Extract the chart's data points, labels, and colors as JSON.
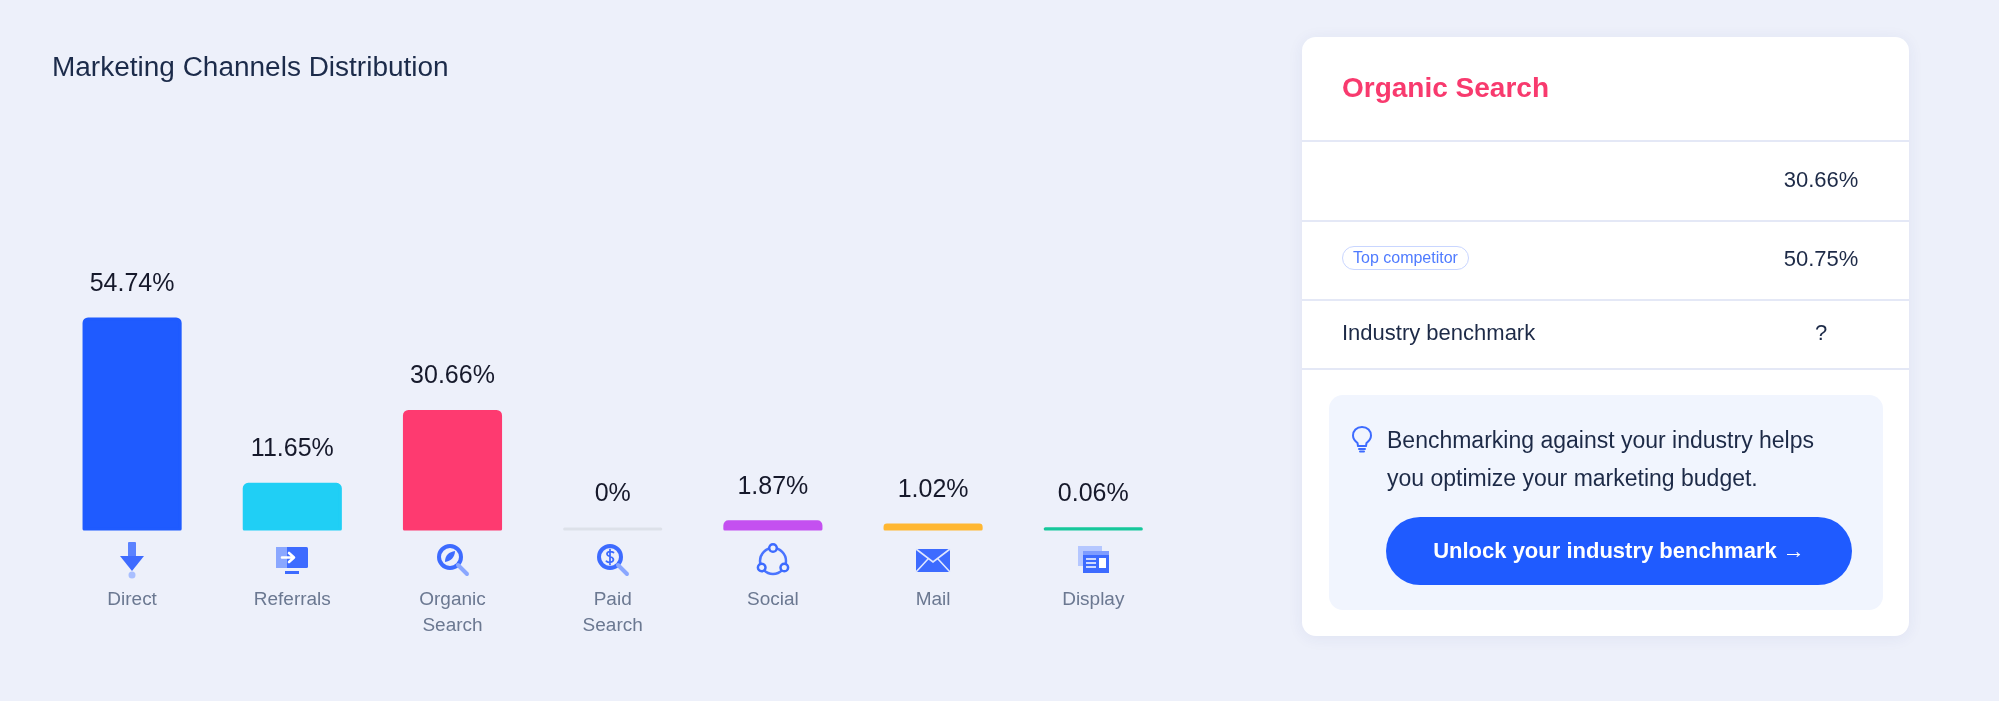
{
  "chart_data": [
    {
      "type": "bar",
      "title": "Marketing Channels Distribution",
      "categories": [
        "Direct",
        "Referrals",
        "Organic Search",
        "Paid Search",
        "Social",
        "Mail",
        "Display"
      ],
      "values": [
        54.74,
        11.65,
        30.66,
        0,
        1.87,
        1.02,
        0.06
      ],
      "colors": [
        "#1f5bff",
        "#20cff5",
        "#fe3a70",
        "#dde1e9",
        "#c450f0",
        "#ffb732",
        "#16c79b"
      ],
      "value_labels": [
        "54.74%",
        "11.65%",
        "30.66%",
        "0%",
        "1.87%",
        "1.02%",
        "0.06%"
      ],
      "tick_labels": "x"
    },
    {
      "type": "other",
      "title": "Organic Search",
      "annotations": [
        "30.66%",
        "Top competitor",
        "50.75%",
        "Industry benchmark",
        "?",
        "Benchmarking against your industry helps you optimize your marketing budget.",
        "Unlock your industry benchmark →"
      ]
    }
  ]
}
